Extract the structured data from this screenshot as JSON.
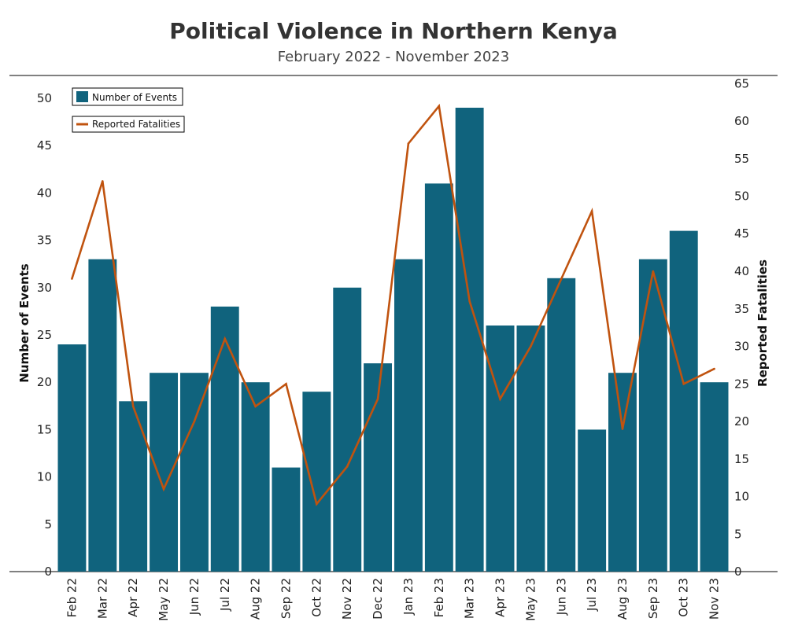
{
  "chart_data": {
    "type": "bar",
    "title": "Political Violence in Northern Kenya",
    "subtitle": "February  2022 - November 2023",
    "categories": [
      "Feb 22",
      "Mar 22",
      "Apr 22",
      "May 22",
      "Jun 22",
      "Jul 22",
      "Aug 22",
      "Sep 22",
      "Oct 22",
      "Nov 22",
      "Dec 22",
      "Jan 23",
      "Feb 23",
      "Mar 23",
      "Apr 23",
      "May 23",
      "Jun 23",
      "Jul 23",
      "Aug 23",
      "Sep 23",
      "Oct 23",
      "Nov 23"
    ],
    "series": [
      {
        "name": "Number of Events",
        "type": "bar",
        "axis": "left",
        "color": "#10637d",
        "values": [
          24,
          33,
          18,
          21,
          21,
          28,
          20,
          11,
          19,
          30,
          22,
          33,
          41,
          49,
          26,
          26,
          31,
          15,
          21,
          33,
          36,
          20
        ]
      },
      {
        "name": "Reported Fatalities",
        "type": "line",
        "axis": "right",
        "color": "#c0530f",
        "values": [
          39,
          52,
          22,
          11,
          20,
          31,
          22,
          25,
          9,
          14,
          23,
          57,
          62,
          36,
          23,
          30,
          39,
          48,
          19,
          40,
          25,
          27
        ]
      }
    ],
    "ylabel": "Number of Events",
    "ylim": [
      0,
      52
    ],
    "yticks": [
      0,
      5,
      10,
      15,
      20,
      25,
      30,
      35,
      40,
      45,
      50
    ],
    "y2label": "Reported Fatalities",
    "y2lim": [
      0,
      66
    ],
    "y2ticks": [
      0,
      5,
      10,
      15,
      20,
      25,
      30,
      35,
      40,
      45,
      50,
      55,
      60,
      65
    ],
    "grid": false,
    "legend_position": "top-left"
  }
}
